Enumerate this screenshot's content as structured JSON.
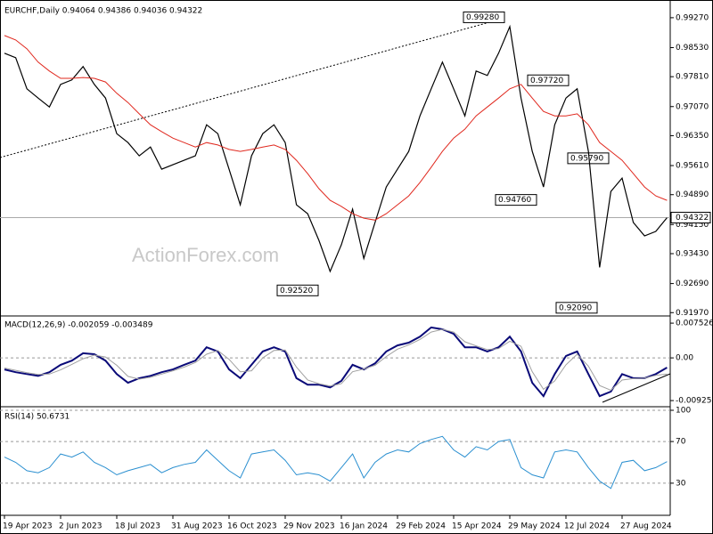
{
  "chart_data": [
    {
      "type": "line",
      "title": "EURCHF,Daily  0.94064 0.94386 0.94036 0.94322",
      "watermark": "ActionForex.com",
      "series": [
        {
          "color": "#000000",
          "values": [
            0.9839,
            0.9828,
            0.9751,
            0.9728,
            0.9706,
            0.9762,
            0.9773,
            0.9806,
            0.9762,
            0.9728,
            0.964,
            0.9618,
            0.9585,
            0.9607,
            0.9552,
            0.9563,
            0.9574,
            0.9585,
            0.9662,
            0.964,
            0.9552,
            0.9464,
            0.9585,
            0.964,
            0.9662,
            0.9618,
            0.9464,
            0.9442,
            0.9376,
            0.9299,
            0.9365,
            0.9453,
            0.9331,
            0.942,
            0.9508,
            0.9552,
            0.9596,
            0.9684,
            0.9751,
            0.9817,
            0.9751,
            0.9684,
            0.9795,
            0.9784,
            0.9839,
            0.9905,
            0.9728,
            0.9596,
            0.9508,
            0.9662,
            0.9728,
            0.9751,
            0.9596,
            0.9309,
            0.9497,
            0.953,
            0.942,
            0.9387,
            0.9398,
            0.9432
          ]
        },
        {
          "color": "#e0281e",
          "values": [
            0.9883,
            0.9872,
            0.985,
            0.9817,
            0.9795,
            0.9777,
            0.9777,
            0.9779,
            0.9777,
            0.9768,
            0.974,
            0.9717,
            0.9689,
            0.9662,
            0.9645,
            0.9629,
            0.9618,
            0.9607,
            0.9618,
            0.9612,
            0.9601,
            0.9596,
            0.9601,
            0.9607,
            0.9612,
            0.9601,
            0.9574,
            0.9541,
            0.9504,
            0.9475,
            0.946,
            0.9442,
            0.9431,
            0.9426,
            0.9442,
            0.9464,
            0.9486,
            0.9519,
            0.9557,
            0.9596,
            0.9629,
            0.9651,
            0.9684,
            0.9706,
            0.9728,
            0.9751,
            0.9762,
            0.9728,
            0.9695,
            0.9684,
            0.9684,
            0.9689,
            0.9662,
            0.9618,
            0.9596,
            0.9574,
            0.9541,
            0.9508,
            0.9486,
            0.9475
          ]
        }
      ],
      "last_price": 0.94322,
      "annotations": [
        {
          "value": 0.9928,
          "label": "0.99280"
        },
        {
          "value": 0.9772,
          "label": "0.97720"
        },
        {
          "value": 0.9476,
          "label": "0.94760"
        },
        {
          "value": 0.9579,
          "label": "0.95790"
        },
        {
          "value": 0.9252,
          "label": "0.92520"
        },
        {
          "value": 0.9209,
          "label": "0.92090"
        }
      ],
      "ylim": [
        0.9191,
        0.9962
      ],
      "yticks": [
        {
          "value": 0.9927,
          "label": "0.99270"
        },
        {
          "value": 0.9853,
          "label": "0.98530"
        },
        {
          "value": 0.9781,
          "label": "0.97810"
        },
        {
          "value": 0.9707,
          "label": "0.97070"
        },
        {
          "value": 0.9635,
          "label": "0.96350"
        },
        {
          "value": 0.9561,
          "label": "0.95610"
        },
        {
          "value": 0.9489,
          "label": "0.94890"
        },
        {
          "value": 0.9415,
          "label": "0.94150"
        },
        {
          "value": 0.9343,
          "label": "0.93430"
        },
        {
          "value": 0.9269,
          "label": "0.92690"
        },
        {
          "value": 0.9197,
          "label": "0.91970"
        }
      ],
      "grid": false
    },
    {
      "type": "line",
      "title": "MACD(12,26,9) -0.002059 -0.003489",
      "series": [
        {
          "color": "#0a0a78",
          "values": [
            -0.0025,
            -0.0031,
            -0.0035,
            -0.0039,
            -0.0031,
            -0.0015,
            -0.0006,
            0.001,
            0.0008,
            -0.0006,
            -0.0035,
            -0.0054,
            -0.0044,
            -0.0039,
            -0.0031,
            -0.0025,
            -0.0015,
            -0.0006,
            0.0023,
            0.0014,
            -0.0025,
            -0.0044,
            -0.0015,
            0.0014,
            0.0023,
            0.0014,
            -0.0044,
            -0.0058,
            -0.0058,
            -0.0064,
            -0.005,
            -0.0015,
            -0.0025,
            -0.0012,
            0.0014,
            0.0027,
            0.0033,
            0.0046,
            0.0066,
            0.0062,
            0.0052,
            0.0023,
            0.0023,
            0.0014,
            0.0023,
            0.0046,
            0.0014,
            -0.0054,
            -0.0083,
            -0.0035,
            0.0004,
            0.0014,
            -0.0035,
            -0.0083,
            -0.0073,
            -0.0035,
            -0.0044,
            -0.0044,
            -0.0035,
            -0.0021
          ]
        },
        {
          "color": "#a0a0a0",
          "values": [
            -0.0022,
            -0.0027,
            -0.0032,
            -0.0036,
            -0.0035,
            -0.0026,
            -0.0014,
            -0.0002,
            0.0006,
            0.0002,
            -0.0016,
            -0.004,
            -0.0046,
            -0.0042,
            -0.0035,
            -0.0028,
            -0.002,
            -0.001,
            0.0008,
            0.0016,
            -0.0003,
            -0.003,
            -0.0028,
            0.0,
            0.0016,
            0.0017,
            -0.002,
            -0.0048,
            -0.0056,
            -0.0061,
            -0.0056,
            -0.003,
            -0.0024,
            -0.0016,
            0.0003,
            0.0019,
            0.0028,
            0.004,
            0.0056,
            0.0062,
            0.0056,
            0.0035,
            0.0026,
            0.0018,
            0.002,
            0.0036,
            0.0025,
            -0.003,
            -0.0068,
            -0.005,
            -0.0015,
            0.0008,
            -0.0018,
            -0.006,
            -0.007,
            -0.0048,
            -0.0045,
            -0.0044,
            -0.0038,
            -0.0035
          ]
        }
      ],
      "ylim": [
        -0.0102,
        0.0087
      ],
      "yticks": [
        0.007526,
        {
          "value": 0,
          "label": "0.00"
        },
        -0.009252
      ],
      "grid": false
    },
    {
      "type": "line",
      "title": "RSI(14) 50.6731",
      "categories": [
        "19 Apr 2023",
        null,
        null,
        null,
        null,
        "2 Jun 2023",
        null,
        null,
        null,
        null,
        "18 Jul 2023",
        null,
        null,
        null,
        null,
        "31 Aug 2023",
        null,
        null,
        null,
        null,
        "16 Oct 2023",
        null,
        null,
        null,
        null,
        "29 Nov 2023",
        null,
        null,
        null,
        null,
        "16 Jan 2024",
        null,
        null,
        null,
        null,
        "29 Feb 2024",
        null,
        null,
        null,
        null,
        "15 Apr 2024",
        null,
        null,
        null,
        null,
        "29 May 2024",
        null,
        null,
        null,
        null,
        "12 Jul 2024",
        null,
        null,
        null,
        null,
        "27 Aug 2024",
        null,
        null,
        null,
        null
      ],
      "series": [
        {
          "color": "#2a8fd0",
          "values": [
            55,
            50,
            42,
            40,
            45,
            58,
            55,
            60,
            50,
            45,
            38,
            42,
            45,
            48,
            40,
            45,
            48,
            50,
            62,
            52,
            42,
            35,
            58,
            60,
            62,
            52,
            38,
            40,
            38,
            32,
            45,
            58,
            35,
            50,
            58,
            62,
            60,
            68,
            72,
            75,
            62,
            55,
            65,
            62,
            70,
            72,
            45,
            38,
            35,
            60,
            62,
            60,
            45,
            32,
            25,
            50,
            52,
            42,
            45,
            50.6731
          ]
        }
      ],
      "ylim": [
        0,
        100
      ],
      "yticks": [
        100,
        70,
        30
      ],
      "grid": true
    }
  ]
}
